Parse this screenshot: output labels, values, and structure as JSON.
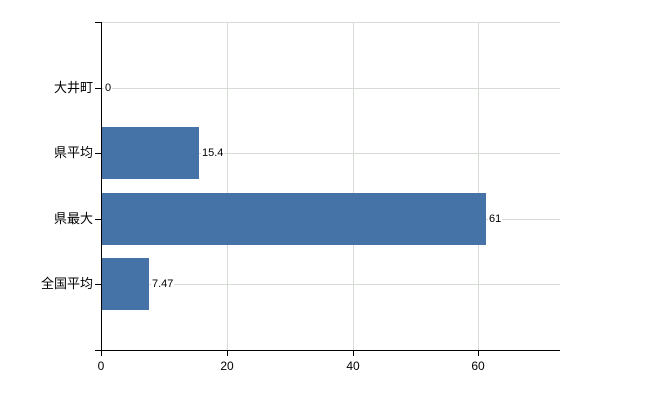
{
  "chart_data": {
    "type": "bar",
    "orientation": "horizontal",
    "title": "",
    "xlabel": "",
    "ylabel": "",
    "categories": [
      "大井町",
      "県平均",
      "県最大",
      "全国平均"
    ],
    "values": [
      0,
      15.4,
      61,
      7.47
    ],
    "value_labels": [
      "0",
      "15.4",
      "61",
      "7.47"
    ],
    "x_ticks": [
      0,
      20,
      40,
      60
    ],
    "x_tick_labels": [
      "0",
      "20",
      "40",
      "60"
    ],
    "xlim": [
      0,
      73
    ],
    "grid": true,
    "legend": false
  },
  "colors": {
    "bar": "#4572a7",
    "axis": "#000000",
    "gridline": "#d6dbd6",
    "text": "#000000",
    "background": "#ffffff"
  }
}
